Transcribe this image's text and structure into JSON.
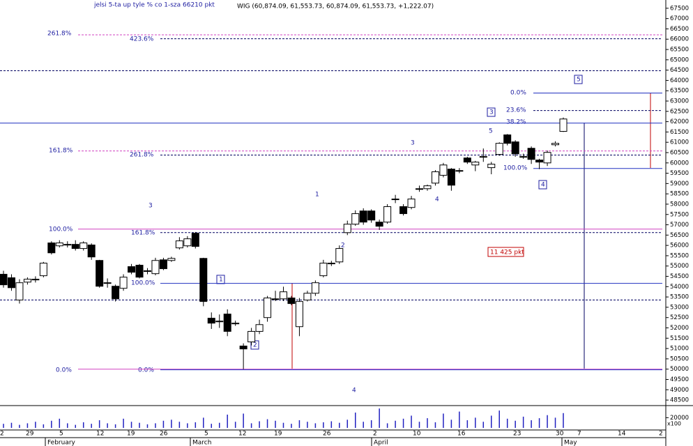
{
  "chart_data": {
    "type": "candlestick",
    "title": "jelsi 5-ta up tyle % co 1-sza 66210 pkt",
    "subtitle": "WIG (60,874.09, 61,553.73, 60,874.09, 61,553.73, +1,222.07)",
    "open": [
      54600,
      54430,
      53350,
      54220,
      54360,
      54530,
      56120,
      55980,
      56050,
      56050,
      55850,
      56020,
      55270,
      54190,
      54020,
      53920,
      54970,
      55040,
      54770,
      54630,
      55300,
      55270,
      55880,
      55980,
      56590,
      55370,
      52470,
      52330,
      52670,
      52230,
      51120,
      51320,
      51830,
      52500,
      53410,
      53410,
      53450,
      52060,
      53350,
      53680,
      54530,
      55140,
      55200,
      56620,
      57030,
      57670,
      57670,
      57130,
      57130,
      58250,
      57880,
      57840,
      58750,
      58750,
      59020,
      59400,
      59700,
      59630,
      60240,
      59900,
      60310,
      59770,
      60410,
      61360,
      61020,
      60310,
      60710,
      60140,
      60000,
      60880,
      61530
    ],
    "high": [
      54770,
      54600,
      54360,
      54450,
      54500,
      55200,
      56200,
      56250,
      56200,
      56250,
      56200,
      56100,
      55300,
      54400,
      54100,
      54600,
      55100,
      55100,
      54900,
      55400,
      55400,
      55450,
      56400,
      56450,
      56650,
      55400,
      52750,
      52650,
      52900,
      52350,
      51250,
      52000,
      52400,
      53550,
      53800,
      54000,
      53550,
      53450,
      53800,
      54300,
      55300,
      55250,
      56000,
      57200,
      57700,
      57800,
      57750,
      57250,
      58000,
      58450,
      58000,
      58400,
      58900,
      58950,
      59650,
      60000,
      59750,
      59750,
      60300,
      60100,
      60700,
      60050,
      61000,
      61400,
      61100,
      60450,
      60800,
      60200,
      60600,
      61050,
      62200
    ],
    "low": [
      53950,
      53800,
      53180,
      54100,
      54200,
      54450,
      55560,
      55900,
      55900,
      55750,
      55750,
      55300,
      53950,
      53950,
      53280,
      53800,
      54600,
      54400,
      54600,
      54550,
      54800,
      55200,
      55800,
      55900,
      55850,
      53050,
      51950,
      52000,
      51600,
      52100,
      50000,
      51150,
      51700,
      52300,
      53300,
      53300,
      53100,
      51600,
      53280,
      53550,
      54450,
      55000,
      55100,
      56500,
      56950,
      57000,
      57100,
      56750,
      57050,
      58050,
      57450,
      57750,
      58600,
      58650,
      58900,
      59300,
      58650,
      59500,
      59950,
      59600,
      60050,
      59450,
      60350,
      60850,
      60300,
      60200,
      59950,
      59700,
      59850,
      60800,
      61500
    ],
    "close": [
      54090,
      53950,
      54190,
      54360,
      54360,
      55140,
      55640,
      56120,
      56050,
      55850,
      56120,
      55440,
      54020,
      54190,
      53410,
      54460,
      54700,
      54460,
      54770,
      55270,
      54870,
      55370,
      56220,
      56320,
      55950,
      53280,
      52230,
      52330,
      51830,
      52230,
      50980,
      51830,
      52160,
      53450,
      53410,
      53750,
      53180,
      53280,
      53680,
      54190,
      55140,
      55140,
      55850,
      57030,
      57540,
      57130,
      57230,
      56930,
      57880,
      58250,
      57540,
      58250,
      58750,
      58890,
      59570,
      59900,
      58920,
      59630,
      60040,
      60040,
      60310,
      59940,
      60950,
      60950,
      60440,
      60310,
      60170,
      60040,
      60510,
      60950,
      62130
    ],
    "volume": [
      8000,
      10000,
      6000,
      9000,
      12000,
      7000,
      14000,
      18000,
      9000,
      6000,
      11000,
      8000,
      15000,
      9000,
      7000,
      18000,
      12000,
      10000,
      7000,
      9000,
      14000,
      16000,
      12000,
      9000,
      11000,
      20000,
      8000,
      10000,
      26000,
      12000,
      28000,
      9000,
      13000,
      17000,
      14000,
      10000,
      8000,
      15000,
      12000,
      9000,
      11000,
      13000,
      10000,
      16000,
      30000,
      12000,
      15000,
      38000,
      9000,
      14000,
      18000,
      24000,
      12000,
      19000,
      11000,
      28000,
      16000,
      32000,
      15000,
      20000,
      12000,
      24000,
      34000,
      18000,
      14000,
      22000,
      15000,
      19000,
      25000,
      20000,
      29000
    ],
    "volume_color": "#2020c0",
    "ylim": [
      48300,
      67900
    ],
    "yticks": [
      48500,
      49000,
      49500,
      50000,
      50500,
      51000,
      51500,
      52000,
      52500,
      53000,
      53500,
      54000,
      54500,
      55000,
      55500,
      56000,
      56500,
      57000,
      57500,
      58000,
      58500,
      59000,
      59500,
      60000,
      60500,
      61000,
      61500,
      62000,
      62500,
      63000,
      63500,
      64000,
      64500,
      65000,
      65500,
      66000,
      66500,
      67000,
      67500
    ],
    "volume_ylim": [
      0,
      41000
    ],
    "volume_yticks": [
      20000
    ],
    "volume_unit": "x100",
    "levels": [
      {
        "value": 66210,
        "color": "#d040c0",
        "dashed": true
      },
      {
        "value": 66020,
        "color": "#000060",
        "dashed": true
      },
      {
        "value": 64470,
        "color": "#000060",
        "dashed": true
      },
      {
        "value": 63390,
        "color": "#2030c0",
        "dashed": false
      },
      {
        "value": 62540,
        "color": "#000060",
        "dashed": true
      },
      {
        "value": 61930,
        "color": "#2030c0",
        "dashed": false
      },
      {
        "value": 60580,
        "color": "#d040c0",
        "dashed": true
      },
      {
        "value": 60380,
        "color": "#000060",
        "dashed": true
      },
      {
        "value": 59730,
        "color": "#2030c0",
        "dashed": false
      },
      {
        "value": 56790,
        "color": "#d040c0",
        "dashed": false
      },
      {
        "value": 56620,
        "color": "#000060",
        "dashed": true
      },
      {
        "value": 54160,
        "color": "#2030c0",
        "dashed": false
      },
      {
        "value": 53350,
        "color": "#000060",
        "dashed": true
      },
      {
        "value": 50000,
        "color": "#d040c0",
        "dashed": false
      },
      {
        "value": 49970,
        "color": "#2030c0",
        "dashed": false
      }
    ],
    "annotations": [
      "261.8%",
      "423.6%",
      "0.0%",
      "23.6%",
      "38.2%",
      "161.8%",
      "261.8%",
      "100.0%",
      "100.0%",
      "161.8%",
      "100.0%",
      "0.0%",
      "0.0%",
      "3",
      "1",
      "2",
      "3",
      "4",
      "5",
      "4",
      "5",
      "3",
      "4",
      "1",
      "2",
      "11 425 pkt"
    ],
    "date_labels": [
      "2",
      "29",
      "5",
      "12",
      "19",
      "26",
      "5",
      "12",
      "19",
      "26",
      "2",
      "10",
      "16",
      "23",
      "30",
      "7",
      "14",
      "2"
    ],
    "months": [
      "February",
      "March",
      "April",
      "May"
    ]
  }
}
